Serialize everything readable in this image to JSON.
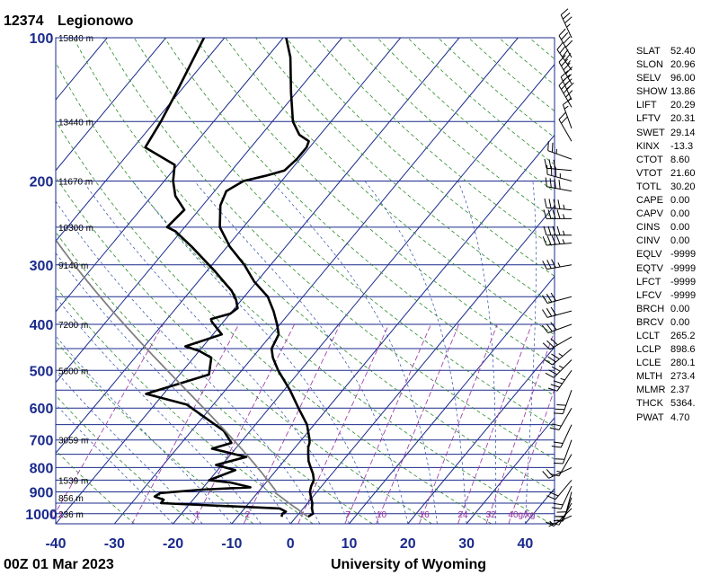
{
  "header": {
    "station_id": "12374",
    "station_name": "Legionowo"
  },
  "footer": {
    "time_label": "00Z 01 Mar 2023",
    "source": "University of Wyoming"
  },
  "indices": [
    {
      "name": "SLAT",
      "value": "52.40"
    },
    {
      "name": "SLON",
      "value": "20.96"
    },
    {
      "name": "SELV",
      "value": "96.00"
    },
    {
      "name": "SHOW",
      "value": "13.86"
    },
    {
      "name": "LIFT",
      "value": "20.29"
    },
    {
      "name": "LFTV",
      "value": "20.31"
    },
    {
      "name": "SWET",
      "value": "29.14"
    },
    {
      "name": "KINX",
      "value": "-13.3"
    },
    {
      "name": "CTOT",
      "value": "8.60"
    },
    {
      "name": "VTOT",
      "value": "21.60"
    },
    {
      "name": "TOTL",
      "value": "30.20"
    },
    {
      "name": "CAPE",
      "value": "0.00"
    },
    {
      "name": "CAPV",
      "value": "0.00"
    },
    {
      "name": "CINS",
      "value": "0.00"
    },
    {
      "name": "CINV",
      "value": "0.00"
    },
    {
      "name": "EQLV",
      "value": "-9999"
    },
    {
      "name": "EQTV",
      "value": "-9999"
    },
    {
      "name": "LFCT",
      "value": "-9999"
    },
    {
      "name": "LFCV",
      "value": "-9999"
    },
    {
      "name": "BRCH",
      "value": "0.00"
    },
    {
      "name": "BRCV",
      "value": "0.00"
    },
    {
      "name": "LCLT",
      "value": "265.2"
    },
    {
      "name": "LCLP",
      "value": "898.6"
    },
    {
      "name": "LCLE",
      "value": "280.1"
    },
    {
      "name": "MLTH",
      "value": "273.4"
    },
    {
      "name": "MLMR",
      "value": "2.37"
    },
    {
      "name": "THCK",
      "value": "5364."
    },
    {
      "name": "PWAT",
      "value": "4.70"
    }
  ],
  "chart_data": {
    "type": "line",
    "diagram": "skew-t log-p",
    "xlim": [
      -40,
      45
    ],
    "xticks": [
      "-40",
      "-30",
      "-20",
      "-10",
      "0",
      "10",
      "20",
      "30",
      "40"
    ],
    "pressure_range_hpa": [
      100,
      1050
    ],
    "pressure_tick_labels": [
      "100",
      "200",
      "300",
      "400",
      "500",
      "600",
      "700",
      "800",
      "900",
      "1000"
    ],
    "height_labels": [
      {
        "p": 1000,
        "text": "236 m"
      },
      {
        "p": 925,
        "text": "856 m"
      },
      {
        "p": 850,
        "text": "1539 m"
      },
      {
        "p": 700,
        "text": "3059 m"
      },
      {
        "p": 500,
        "text": "5600 m"
      },
      {
        "p": 400,
        "text": "7200 m"
      },
      {
        "p": 300,
        "text": "9140 m"
      },
      {
        "p": 250,
        "text": "10300 m"
      },
      {
        "p": 200,
        "text": "11670 m"
      },
      {
        "p": 150,
        "text": "13440 m"
      },
      {
        "p": 100,
        "text": "15840 m"
      }
    ],
    "mixing_ratio_labels": [
      {
        "w": 0.1,
        "text": "0.1"
      },
      {
        "w": 1,
        "text": "1"
      },
      {
        "w": 2,
        "text": "2"
      },
      {
        "w": 7,
        "text": "7"
      },
      {
        "w": 10,
        "text": "10"
      },
      {
        "w": 16,
        "text": "16"
      },
      {
        "w": 24,
        "text": "24"
      },
      {
        "w": 32,
        "text": "32"
      },
      {
        "w": 40,
        "text": "40g/kg"
      }
    ],
    "series": [
      {
        "role": "temperature",
        "color": "#000000",
        "points": [
          [
            1015,
            2
          ],
          [
            1000,
            2.4
          ],
          [
            975,
            1.5
          ],
          [
            950,
            0.8
          ],
          [
            925,
            -0.2
          ],
          [
            900,
            -1.2
          ],
          [
            875,
            -1.8
          ],
          [
            850,
            -2.2
          ],
          [
            825,
            -3.2
          ],
          [
            800,
            -4.5
          ],
          [
            775,
            -5.8
          ],
          [
            750,
            -6.8
          ],
          [
            725,
            -7.8
          ],
          [
            710,
            -8.2
          ],
          [
            700,
            -8.6
          ],
          [
            650,
            -11.2
          ],
          [
            600,
            -15
          ],
          [
            550,
            -19
          ],
          [
            500,
            -23.8
          ],
          [
            470,
            -26.5
          ],
          [
            450,
            -28
          ],
          [
            420,
            -28.8
          ],
          [
            400,
            -30.5
          ],
          [
            375,
            -33
          ],
          [
            350,
            -36
          ],
          [
            325,
            -40.5
          ],
          [
            300,
            -44.5
          ],
          [
            275,
            -49.5
          ],
          [
            250,
            -54
          ],
          [
            225,
            -57
          ],
          [
            210,
            -58
          ],
          [
            200,
            -56.5
          ],
          [
            195,
            -53.5
          ],
          [
            190,
            -51
          ],
          [
            180,
            -50.5
          ],
          [
            170,
            -50.5
          ],
          [
            165,
            -51
          ],
          [
            160,
            -53.5
          ],
          [
            150,
            -56.5
          ],
          [
            130,
            -61
          ],
          [
            110,
            -66
          ],
          [
            100,
            -69.5
          ]
        ]
      },
      {
        "role": "dewpoint",
        "color": "#000000",
        "points": [
          [
            1015,
            -2.5
          ],
          [
            1000,
            -2.8
          ],
          [
            990,
            -2.5
          ],
          [
            975,
            -4
          ],
          [
            950,
            -25
          ],
          [
            935,
            -25
          ],
          [
            920,
            -27
          ],
          [
            905,
            -26.5
          ],
          [
            890,
            -20
          ],
          [
            880,
            -12
          ],
          [
            860,
            -16
          ],
          [
            850,
            -20
          ],
          [
            810,
            -17
          ],
          [
            790,
            -21
          ],
          [
            760,
            -17
          ],
          [
            730,
            -24
          ],
          [
            710,
            -21.5
          ],
          [
            670,
            -24.5
          ],
          [
            590,
            -34.5
          ],
          [
            560,
            -43
          ],
          [
            510,
            -35
          ],
          [
            470,
            -37
          ],
          [
            455,
            -40
          ],
          [
            445,
            -43
          ],
          [
            420,
            -38.5
          ],
          [
            395,
            -42
          ],
          [
            390,
            -42.5
          ],
          [
            380,
            -40
          ],
          [
            370,
            -39.5
          ],
          [
            355,
            -41
          ],
          [
            340,
            -43
          ],
          [
            310,
            -48.5
          ],
          [
            275,
            -56
          ],
          [
            255,
            -61
          ],
          [
            250,
            -63
          ],
          [
            230,
            -62.5
          ],
          [
            215,
            -66
          ],
          [
            200,
            -68.5
          ],
          [
            185,
            -70.5
          ],
          [
            170,
            -78
          ],
          [
            150,
            -79
          ],
          [
            130,
            -80.5
          ],
          [
            100,
            -83.5
          ]
        ]
      }
    ],
    "winds": [
      [
        1010,
        245,
        5
      ],
      [
        975,
        225,
        10
      ],
      [
        950,
        210,
        15
      ],
      [
        925,
        200,
        20
      ],
      [
        900,
        195,
        20
      ],
      [
        875,
        205,
        20
      ],
      [
        850,
        220,
        20
      ],
      [
        800,
        245,
        20
      ],
      [
        750,
        210,
        15
      ],
      [
        700,
        200,
        20
      ],
      [
        650,
        205,
        20
      ],
      [
        600,
        210,
        20
      ],
      [
        550,
        200,
        30
      ],
      [
        500,
        215,
        35
      ],
      [
        475,
        225,
        35
      ],
      [
        450,
        230,
        35
      ],
      [
        425,
        240,
        30
      ],
      [
        400,
        250,
        30
      ],
      [
        375,
        255,
        30
      ],
      [
        350,
        255,
        30
      ],
      [
        300,
        260,
        35
      ],
      [
        270,
        265,
        45
      ],
      [
        260,
        270,
        45
      ],
      [
        240,
        270,
        45
      ],
      [
        230,
        275,
        45
      ],
      [
        210,
        280,
        40
      ],
      [
        200,
        285,
        35
      ],
      [
        190,
        275,
        30
      ],
      [
        180,
        290,
        25
      ],
      [
        165,
        330,
        20
      ],
      [
        155,
        340,
        15
      ],
      [
        140,
        330,
        45
      ],
      [
        135,
        335,
        40
      ],
      [
        125,
        330,
        45
      ],
      [
        117,
        325,
        45
      ],
      [
        110,
        330,
        40
      ],
      [
        100,
        335,
        35
      ]
    ]
  }
}
